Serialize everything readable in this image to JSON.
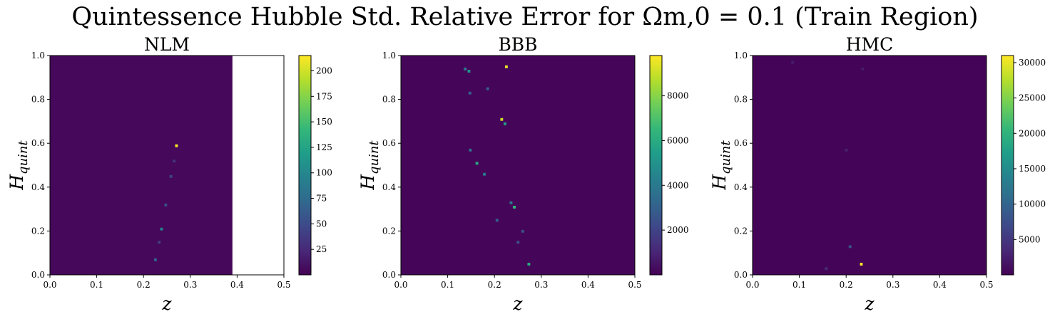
{
  "suptitle": "Quintessence Hubble Std. Relative Error for Ωm,0 = 0.1 (Train Region)",
  "colors": {
    "viridis": [
      "#440154",
      "#482878",
      "#3e4989",
      "#31688e",
      "#26828e",
      "#1f9e89",
      "#35b779",
      "#6ece58",
      "#b5de2b",
      "#fde725"
    ]
  },
  "chart_data": [
    {
      "type": "heatmap",
      "title": "NLM",
      "xlabel": "z",
      "ylabel": "H_quint",
      "xlim": [
        0.0,
        0.5
      ],
      "ylim": [
        0.0,
        1.0
      ],
      "xticks": [
        "0.0",
        "0.1",
        "0.2",
        "0.3",
        "0.4",
        "0.5"
      ],
      "yticks": [
        "0.0",
        "0.2",
        "0.4",
        "0.6",
        "0.8",
        "1.0"
      ],
      "data_xmax": 0.39,
      "colorbar": {
        "min": 0,
        "max": 215,
        "ticks": [
          25,
          50,
          75,
          100,
          125,
          150,
          175,
          200
        ]
      },
      "background_value": 4,
      "hotspots": [
        {
          "z": 0.27,
          "h": 0.59,
          "value": 215
        },
        {
          "z": 0.238,
          "h": 0.21,
          "value": 95
        },
        {
          "z": 0.225,
          "h": 0.07,
          "value": 70
        },
        {
          "z": 0.247,
          "h": 0.32,
          "value": 55
        },
        {
          "z": 0.258,
          "h": 0.45,
          "value": 45
        },
        {
          "z": 0.233,
          "h": 0.15,
          "value": 40
        },
        {
          "z": 0.265,
          "h": 0.52,
          "value": 35
        }
      ]
    },
    {
      "type": "heatmap",
      "title": "BBB",
      "xlabel": "z",
      "ylabel": "H_quint",
      "xlim": [
        0.0,
        0.5
      ],
      "ylim": [
        0.0,
        1.0
      ],
      "xticks": [
        "0.0",
        "0.1",
        "0.2",
        "0.3",
        "0.4",
        "0.5"
      ],
      "yticks": [
        "0.0",
        "0.2",
        "0.4",
        "0.6",
        "0.8",
        "1.0"
      ],
      "data_xmax": 0.5,
      "colorbar": {
        "min": 0,
        "max": 9800,
        "ticks": [
          2000,
          4000,
          6000,
          8000
        ]
      },
      "background_value": 150,
      "hotspots": [
        {
          "z": 0.225,
          "h": 0.95,
          "value": 9500
        },
        {
          "z": 0.215,
          "h": 0.71,
          "value": 9000
        },
        {
          "z": 0.242,
          "h": 0.31,
          "value": 6500
        },
        {
          "z": 0.273,
          "h": 0.05,
          "value": 6000
        },
        {
          "z": 0.162,
          "h": 0.51,
          "value": 6000
        },
        {
          "z": 0.222,
          "h": 0.69,
          "value": 5500
        },
        {
          "z": 0.145,
          "h": 0.93,
          "value": 5000
        },
        {
          "z": 0.137,
          "h": 0.94,
          "value": 4000
        },
        {
          "z": 0.178,
          "h": 0.46,
          "value": 4000
        },
        {
          "z": 0.235,
          "h": 0.33,
          "value": 4000
        },
        {
          "z": 0.148,
          "h": 0.57,
          "value": 3500
        },
        {
          "z": 0.185,
          "h": 0.85,
          "value": 3000
        },
        {
          "z": 0.147,
          "h": 0.83,
          "value": 3000
        },
        {
          "z": 0.205,
          "h": 0.25,
          "value": 3000
        },
        {
          "z": 0.26,
          "h": 0.2,
          "value": 2500
        },
        {
          "z": 0.25,
          "h": 0.15,
          "value": 2500
        }
      ]
    },
    {
      "type": "heatmap",
      "title": "HMC",
      "xlabel": "z",
      "ylabel": "H_quint",
      "xlim": [
        0.0,
        0.5
      ],
      "ylim": [
        0.0,
        1.0
      ],
      "xticks": [
        "0.0",
        "0.1",
        "0.2",
        "0.3",
        "0.4",
        "0.5"
      ],
      "yticks": [
        "0.0",
        "0.2",
        "0.4",
        "0.6",
        "0.8",
        "1.0"
      ],
      "data_xmax": 0.5,
      "colorbar": {
        "min": 0,
        "max": 31000,
        "ticks": [
          5000,
          10000,
          15000,
          20000,
          25000,
          30000
        ]
      },
      "background_value": 300,
      "hotspots": [
        {
          "z": 0.232,
          "h": 0.05,
          "value": 31000
        },
        {
          "z": 0.208,
          "h": 0.13,
          "value": 8000
        },
        {
          "z": 0.157,
          "h": 0.03,
          "value": 4000
        },
        {
          "z": 0.2,
          "h": 0.57,
          "value": 3000
        },
        {
          "z": 0.235,
          "h": 0.94,
          "value": 2500
        },
        {
          "z": 0.085,
          "h": 0.97,
          "value": 2500
        }
      ]
    }
  ]
}
